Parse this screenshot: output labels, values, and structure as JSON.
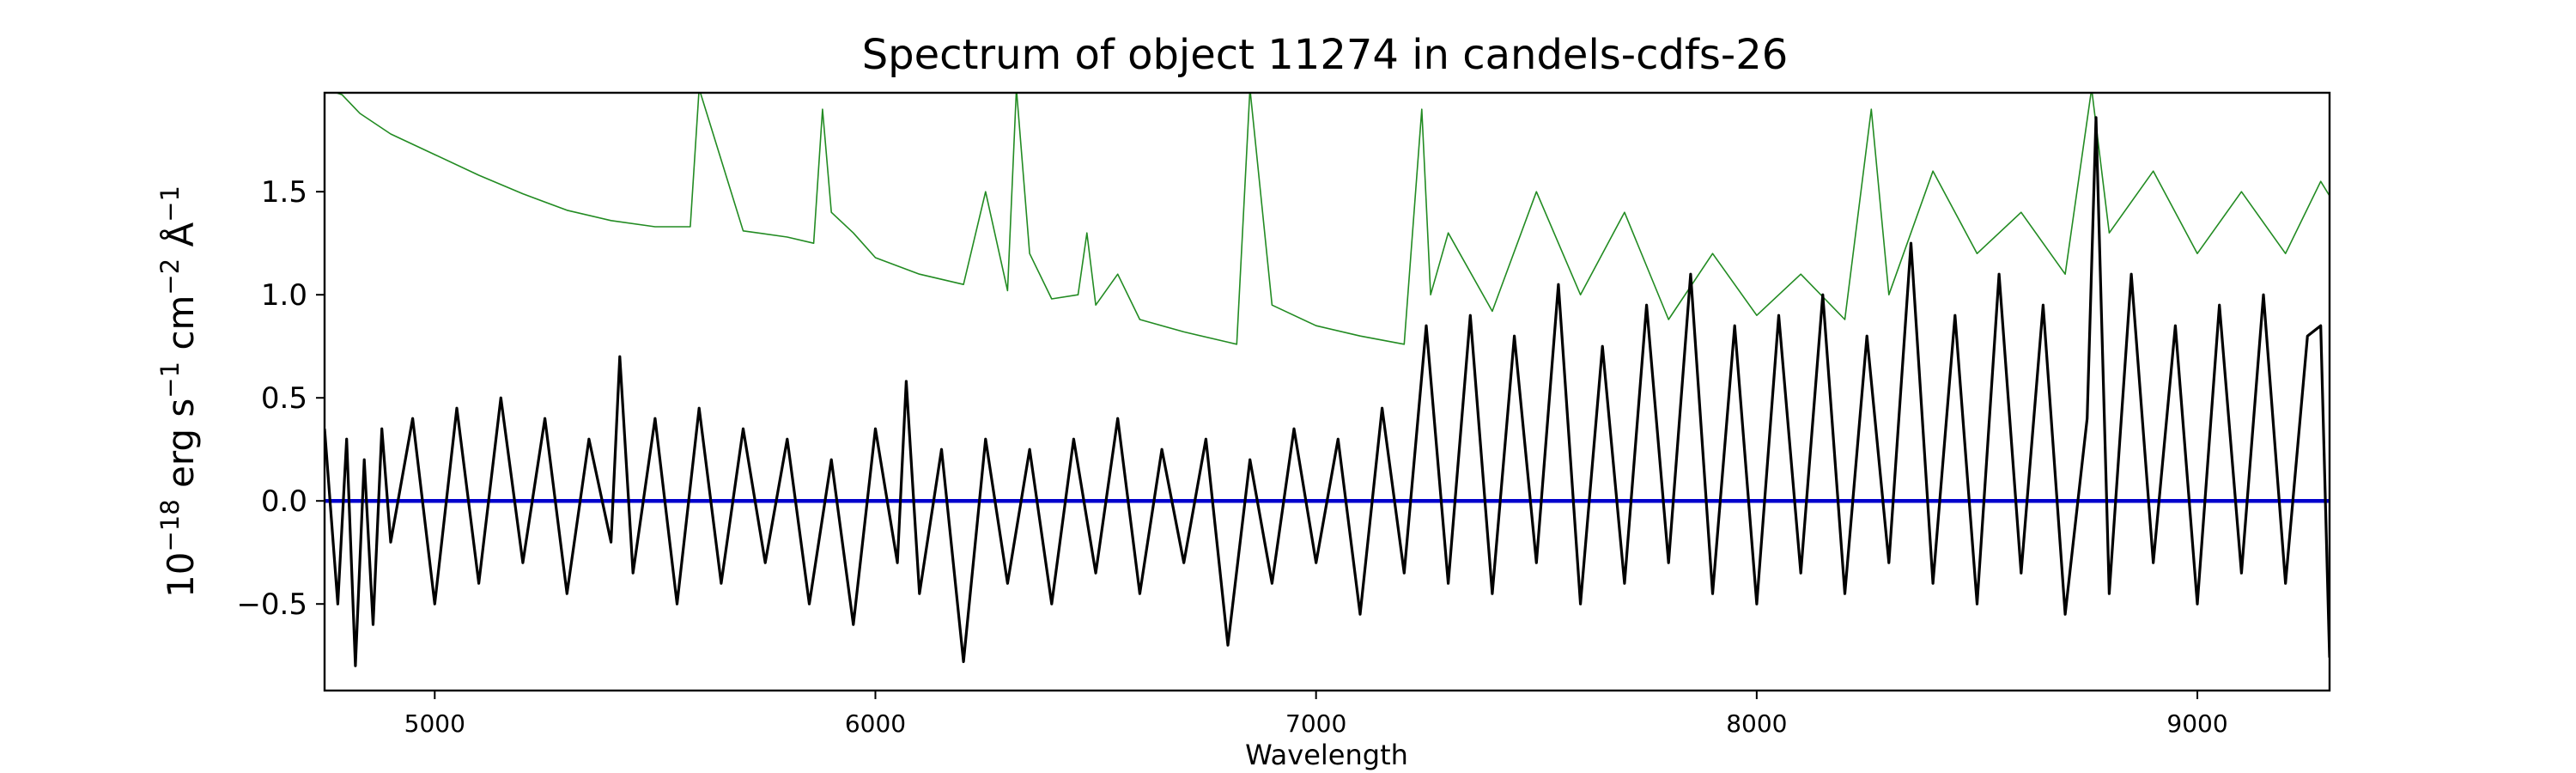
{
  "chart_data": {
    "type": "line",
    "title": "Spectrum of object 11274 in candels-cdfs-26",
    "xlabel": "Wavelength",
    "ylabel": {
      "base": "10",
      "base_exp": "−18",
      "unit1": "erg s",
      "unit1_exp": "−1",
      "unit2": "cm",
      "unit2_exp": "−2",
      "unit3": "Å",
      "unit3_exp": "−1"
    },
    "xlim": [
      4750,
      9300
    ],
    "ylim": [
      -0.92,
      1.98
    ],
    "x_ticks": [
      {
        "value": 5000,
        "label": "5000"
      },
      {
        "value": 6000,
        "label": "6000"
      },
      {
        "value": 7000,
        "label": "7000"
      },
      {
        "value": 8000,
        "label": "8000"
      },
      {
        "value": 9000,
        "label": "9000"
      }
    ],
    "y_ticks": [
      {
        "value": -0.5,
        "label": "−0.5"
      },
      {
        "value": 0.0,
        "label": "0.0"
      },
      {
        "value": 0.5,
        "label": "0.5"
      },
      {
        "value": 1.0,
        "label": "1.0"
      },
      {
        "value": 1.5,
        "label": "1.5"
      }
    ],
    "grid": false,
    "legend": "none",
    "series": [
      {
        "role": "error-spectrum",
        "color": "#228B22",
        "x": [
          4750,
          4790,
          4830,
          4900,
          5000,
          5100,
          5200,
          5300,
          5400,
          5500,
          5580,
          5600,
          5700,
          5800,
          5860,
          5880,
          5900,
          5950,
          6000,
          6100,
          6200,
          6250,
          6300,
          6320,
          6350,
          6400,
          6460,
          6480,
          6500,
          6550,
          6600,
          6700,
          6800,
          6820,
          6850,
          6900,
          7000,
          7100,
          7200,
          7240,
          7260,
          7300,
          7400,
          7500,
          7600,
          7700,
          7800,
          7900,
          8000,
          8100,
          8200,
          8260,
          8300,
          8400,
          8500,
          8600,
          8700,
          8760,
          8800,
          8900,
          9000,
          9100,
          9200,
          9280,
          9300
        ],
        "y": [
          2.0,
          1.97,
          1.88,
          1.78,
          1.68,
          1.58,
          1.49,
          1.41,
          1.36,
          1.33,
          1.33,
          2.0,
          1.31,
          1.28,
          1.25,
          1.9,
          1.4,
          1.3,
          1.18,
          1.1,
          1.05,
          1.5,
          1.02,
          2.0,
          1.2,
          0.98,
          1.0,
          1.3,
          0.95,
          1.1,
          0.88,
          0.82,
          0.77,
          0.76,
          2.0,
          0.95,
          0.85,
          0.8,
          0.76,
          1.9,
          1.0,
          1.3,
          0.92,
          1.5,
          1.0,
          1.4,
          0.88,
          1.2,
          0.9,
          1.1,
          0.88,
          1.9,
          1.0,
          1.6,
          1.2,
          1.4,
          1.1,
          2.0,
          1.3,
          1.6,
          1.2,
          1.5,
          1.2,
          1.55,
          1.48
        ]
      },
      {
        "role": "zero-line",
        "color": "#0000CD",
        "x": [
          4750,
          9300
        ],
        "y": [
          0.0,
          0.0
        ]
      },
      {
        "role": "flux-spectrum",
        "color": "#000000",
        "x": [
          4750,
          4780,
          4800,
          4820,
          4840,
          4860,
          4880,
          4900,
          4950,
          5000,
          5050,
          5100,
          5150,
          5200,
          5250,
          5300,
          5350,
          5400,
          5420,
          5450,
          5500,
          5550,
          5600,
          5650,
          5700,
          5750,
          5800,
          5850,
          5900,
          5950,
          6000,
          6050,
          6070,
          6100,
          6150,
          6200,
          6250,
          6300,
          6350,
          6400,
          6450,
          6500,
          6550,
          6600,
          6650,
          6700,
          6750,
          6800,
          6850,
          6900,
          6950,
          7000,
          7050,
          7100,
          7150,
          7200,
          7250,
          7300,
          7350,
          7400,
          7450,
          7500,
          7550,
          7600,
          7650,
          7700,
          7750,
          7800,
          7850,
          7900,
          7950,
          8000,
          8050,
          8100,
          8150,
          8200,
          8250,
          8300,
          8350,
          8400,
          8450,
          8500,
          8550,
          8600,
          8650,
          8700,
          8750,
          8770,
          8800,
          8850,
          8900,
          8950,
          9000,
          9050,
          9100,
          9150,
          9200,
          9250,
          9280,
          9300
        ],
        "y": [
          0.35,
          -0.5,
          0.3,
          -0.8,
          0.2,
          -0.6,
          0.35,
          -0.2,
          0.4,
          -0.5,
          0.45,
          -0.4,
          0.5,
          -0.3,
          0.4,
          -0.45,
          0.3,
          -0.2,
          0.7,
          -0.35,
          0.4,
          -0.5,
          0.45,
          -0.4,
          0.35,
          -0.3,
          0.3,
          -0.5,
          0.2,
          -0.6,
          0.35,
          -0.3,
          0.58,
          -0.45,
          0.25,
          -0.78,
          0.3,
          -0.4,
          0.25,
          -0.5,
          0.3,
          -0.35,
          0.4,
          -0.45,
          0.25,
          -0.3,
          0.3,
          -0.7,
          0.2,
          -0.4,
          0.35,
          -0.3,
          0.3,
          -0.55,
          0.45,
          -0.35,
          0.85,
          -0.4,
          0.9,
          -0.45,
          0.8,
          -0.3,
          1.05,
          -0.5,
          0.75,
          -0.4,
          0.95,
          -0.3,
          1.1,
          -0.45,
          0.85,
          -0.5,
          0.9,
          -0.35,
          1.0,
          -0.45,
          0.8,
          -0.3,
          1.25,
          -0.4,
          0.9,
          -0.5,
          1.1,
          -0.35,
          0.95,
          -0.55,
          0.4,
          1.86,
          -0.45,
          1.1,
          -0.3,
          0.85,
          -0.5,
          0.95,
          -0.35,
          1.0,
          -0.4,
          0.8,
          0.85,
          -0.76
        ]
      }
    ]
  }
}
